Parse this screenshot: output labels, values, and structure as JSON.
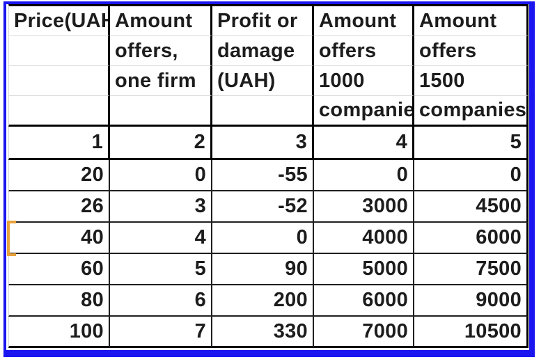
{
  "colors": {
    "frame_blue": "#1b15ef",
    "selection_orange": "#e8a23c",
    "thick_border": "#000000",
    "data_border": "#1f1f1f",
    "gridline_light": "#d8d8d8",
    "text": "#1c1c1c"
  },
  "table": {
    "header_columns": [
      [
        "Price(UAH",
        "",
        "",
        ""
      ],
      [
        "Amount",
        "offers,",
        "one firm",
        ""
      ],
      [
        "Profit or",
        "damage",
        "(UAH)",
        ""
      ],
      [
        "Amount",
        "offers",
        "1000",
        "companie"
      ],
      [
        "Amount",
        "offers",
        "1500",
        "companies"
      ]
    ],
    "index_row": [
      "1",
      "2",
      "3",
      "4",
      "5"
    ],
    "rows": [
      [
        "20",
        "0",
        "-55",
        "0",
        "0"
      ],
      [
        "26",
        "3",
        "-52",
        "3000",
        "4500"
      ],
      [
        "40",
        "4",
        "0",
        "4000",
        "6000"
      ],
      [
        "60",
        "5",
        "90",
        "5000",
        "7500"
      ],
      [
        "80",
        "6",
        "200",
        "6000",
        "9000"
      ],
      [
        "100",
        "7",
        "330",
        "7000",
        "10500"
      ]
    ]
  }
}
